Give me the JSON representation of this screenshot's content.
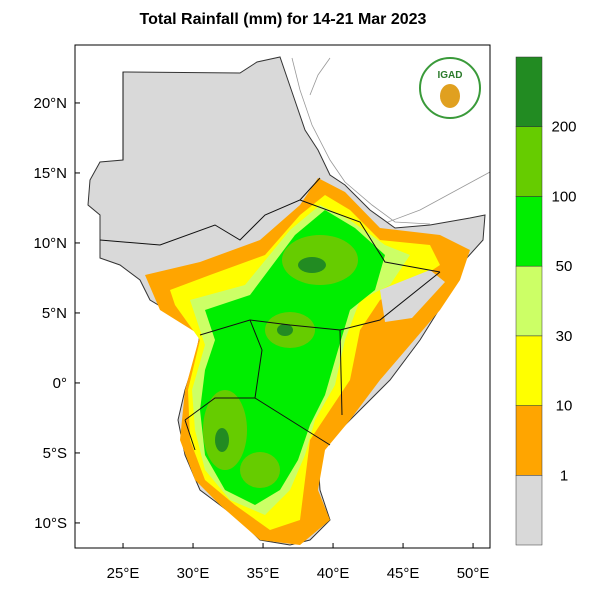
{
  "map": {
    "title": "Total Rainfall (mm) for 14-21 Mar 2023",
    "logo_text": "IGAD",
    "xlim": [
      21.57,
      51.21
    ],
    "ylim": [
      -11.79,
      24.14
    ],
    "xticks": [
      {
        "value": 25,
        "label": "25°E"
      },
      {
        "value": 30,
        "label": "30°E"
      },
      {
        "value": 35,
        "label": "35°E"
      },
      {
        "value": 40,
        "label": "40°E"
      },
      {
        "value": 45,
        "label": "45°E"
      },
      {
        "value": 50,
        "label": "50°E"
      }
    ],
    "yticks": [
      {
        "value": 20,
        "label": "20°N"
      },
      {
        "value": 15,
        "label": "15°N"
      },
      {
        "value": 10,
        "label": "10°N"
      },
      {
        "value": 5,
        "label": "5°N"
      },
      {
        "value": 0,
        "label": "0°"
      },
      {
        "value": -5,
        "label": "5°S"
      },
      {
        "value": -10,
        "label": "10°S"
      }
    ],
    "colorbar": {
      "levels": [
        1,
        10,
        30,
        50,
        100,
        200
      ],
      "colors": [
        "#d9d9d9",
        "#ffa500",
        "#ffff00",
        "#ccff66",
        "#00ee00",
        "#66cc00",
        "#228b22"
      ]
    }
  }
}
